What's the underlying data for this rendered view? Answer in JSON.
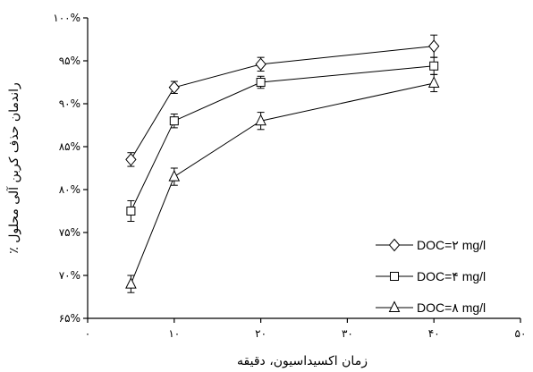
{
  "chart_data": {
    "type": "line",
    "xlabel": "زمان اکسیداسیون، دقیقه",
    "ylabel": "راندمان حذف کربن آلی محلول ٪",
    "xlim": [
      0,
      50
    ],
    "ylim": [
      65,
      100
    ],
    "x_ticks": [
      0,
      10,
      20,
      30,
      40,
      50
    ],
    "x_tick_labels": [
      "۰",
      "۱۰",
      "۲۰",
      "۳۰",
      "۴۰",
      "۵۰"
    ],
    "y_ticks": [
      65,
      70,
      75,
      80,
      85,
      90,
      95,
      100
    ],
    "y_tick_labels": [
      "۶۵%",
      "۷۰%",
      "۷۵%",
      "۸۰%",
      "۸۵%",
      "۹۰%",
      "۹۵%",
      "۱۰۰%"
    ],
    "grid": false,
    "legend_position": "bottom-right",
    "series": [
      {
        "name": "DOC=۲ mg/l",
        "marker": "diamond",
        "x": [
          5,
          10,
          20,
          40
        ],
        "y": [
          83.5,
          91.9,
          94.6,
          96.7
        ],
        "err": [
          0.8,
          0.7,
          0.8,
          1.3
        ]
      },
      {
        "name": "DOC=۴ mg/l",
        "marker": "square",
        "x": [
          5,
          10,
          20,
          40
        ],
        "y": [
          77.5,
          88.0,
          92.5,
          94.4
        ],
        "err": [
          1.2,
          0.8,
          0.7,
          1.0
        ]
      },
      {
        "name": "DOC=۸ mg/l",
        "marker": "triangle",
        "x": [
          5,
          10,
          20,
          40
        ],
        "y": [
          69.0,
          81.5,
          88.0,
          92.4
        ],
        "err": [
          1.0,
          1.0,
          1.0,
          1.0
        ]
      }
    ]
  }
}
